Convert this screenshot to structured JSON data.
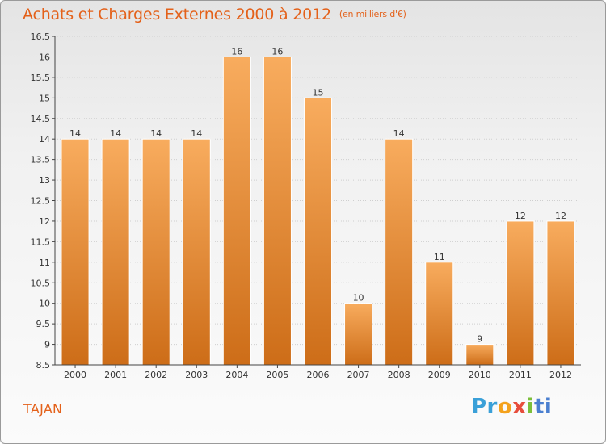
{
  "title": "Achats et Charges Externes 2000 à 2012",
  "unit": "(en milliers d'€)",
  "commune": "TAJAN",
  "brand": {
    "parts": [
      "Pr",
      "o",
      "x",
      "i",
      "ti"
    ],
    "colors": [
      "#3aa0d8",
      "#f4a21c",
      "#e74d3c",
      "#7cbf3a",
      "#4a7fd0"
    ]
  },
  "colors": {
    "title": "#e4611a",
    "bar_light": "#f7a85a",
    "bar_dark": "#cf6f1a",
    "grid": "#cfcfcf",
    "axis_text": "#333333"
  },
  "chart_data": {
    "type": "bar",
    "title": "Achats et Charges Externes 2000 à 2012",
    "subtitle": "(en milliers d'€)",
    "categories": [
      "2000",
      "2001",
      "2002",
      "2003",
      "2004",
      "2005",
      "2006",
      "2007",
      "2008",
      "2009",
      "2010",
      "2011",
      "2012"
    ],
    "values": [
      14,
      14,
      14,
      14,
      16,
      16,
      15,
      10,
      14,
      11,
      9,
      12,
      12
    ],
    "data_labels": [
      "14",
      "14",
      "14",
      "14",
      "16",
      "16",
      "15",
      "10",
      "14",
      "11",
      "9",
      "12",
      "12"
    ],
    "ylim": [
      8.5,
      16.5
    ],
    "yticks": [
      "8.5",
      "9",
      "9.5",
      "10",
      "10.5",
      "11",
      "11.5",
      "12",
      "12.5",
      "13",
      "13.5",
      "14",
      "14.5",
      "15",
      "15.5",
      "16",
      "16.5"
    ],
    "grid": true,
    "xlabel": "",
    "ylabel": ""
  }
}
